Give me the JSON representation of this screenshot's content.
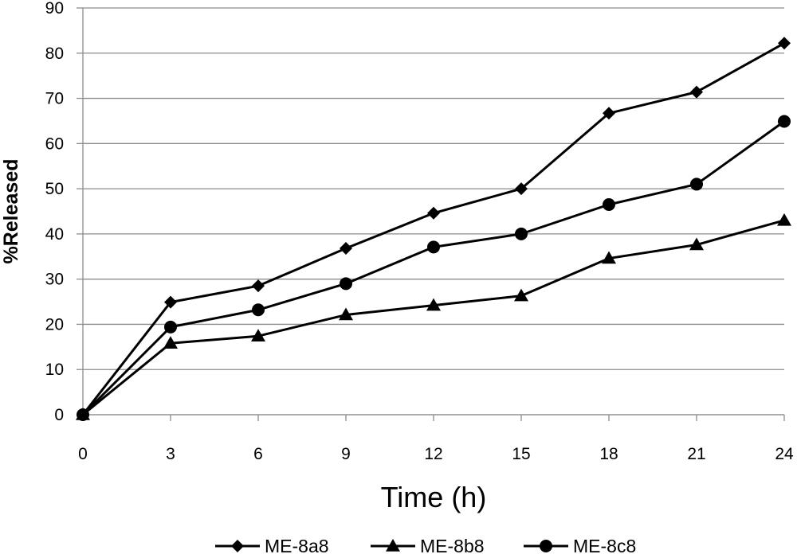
{
  "chart_data": {
    "type": "line",
    "title": "",
    "xlabel": "Time (h)",
    "ylabel": "%Released",
    "x": [
      0,
      3,
      6,
      9,
      12,
      15,
      18,
      21,
      24
    ],
    "xlim": [
      0,
      24
    ],
    "ylim": [
      0,
      90
    ],
    "yticks": [
      0,
      10,
      20,
      30,
      40,
      50,
      60,
      70,
      80,
      90
    ],
    "xticks": [
      0,
      3,
      6,
      9,
      12,
      15,
      18,
      21,
      24
    ],
    "grid": "horizontal",
    "legend_position": "bottom",
    "series": [
      {
        "name": "ME-8a8",
        "marker": "diamond",
        "values": [
          0,
          24.9,
          28.5,
          36.8,
          44.6,
          50.0,
          66.7,
          71.4,
          82.2
        ]
      },
      {
        "name": "ME-8b8",
        "marker": "triangle",
        "values": [
          0,
          15.8,
          17.4,
          22.1,
          24.2,
          26.3,
          34.6,
          37.6,
          43.0
        ]
      },
      {
        "name": "ME-8c8",
        "marker": "circle",
        "values": [
          0,
          19.4,
          23.2,
          29.0,
          37.1,
          40.0,
          46.5,
          51.0,
          64.9
        ]
      }
    ]
  }
}
